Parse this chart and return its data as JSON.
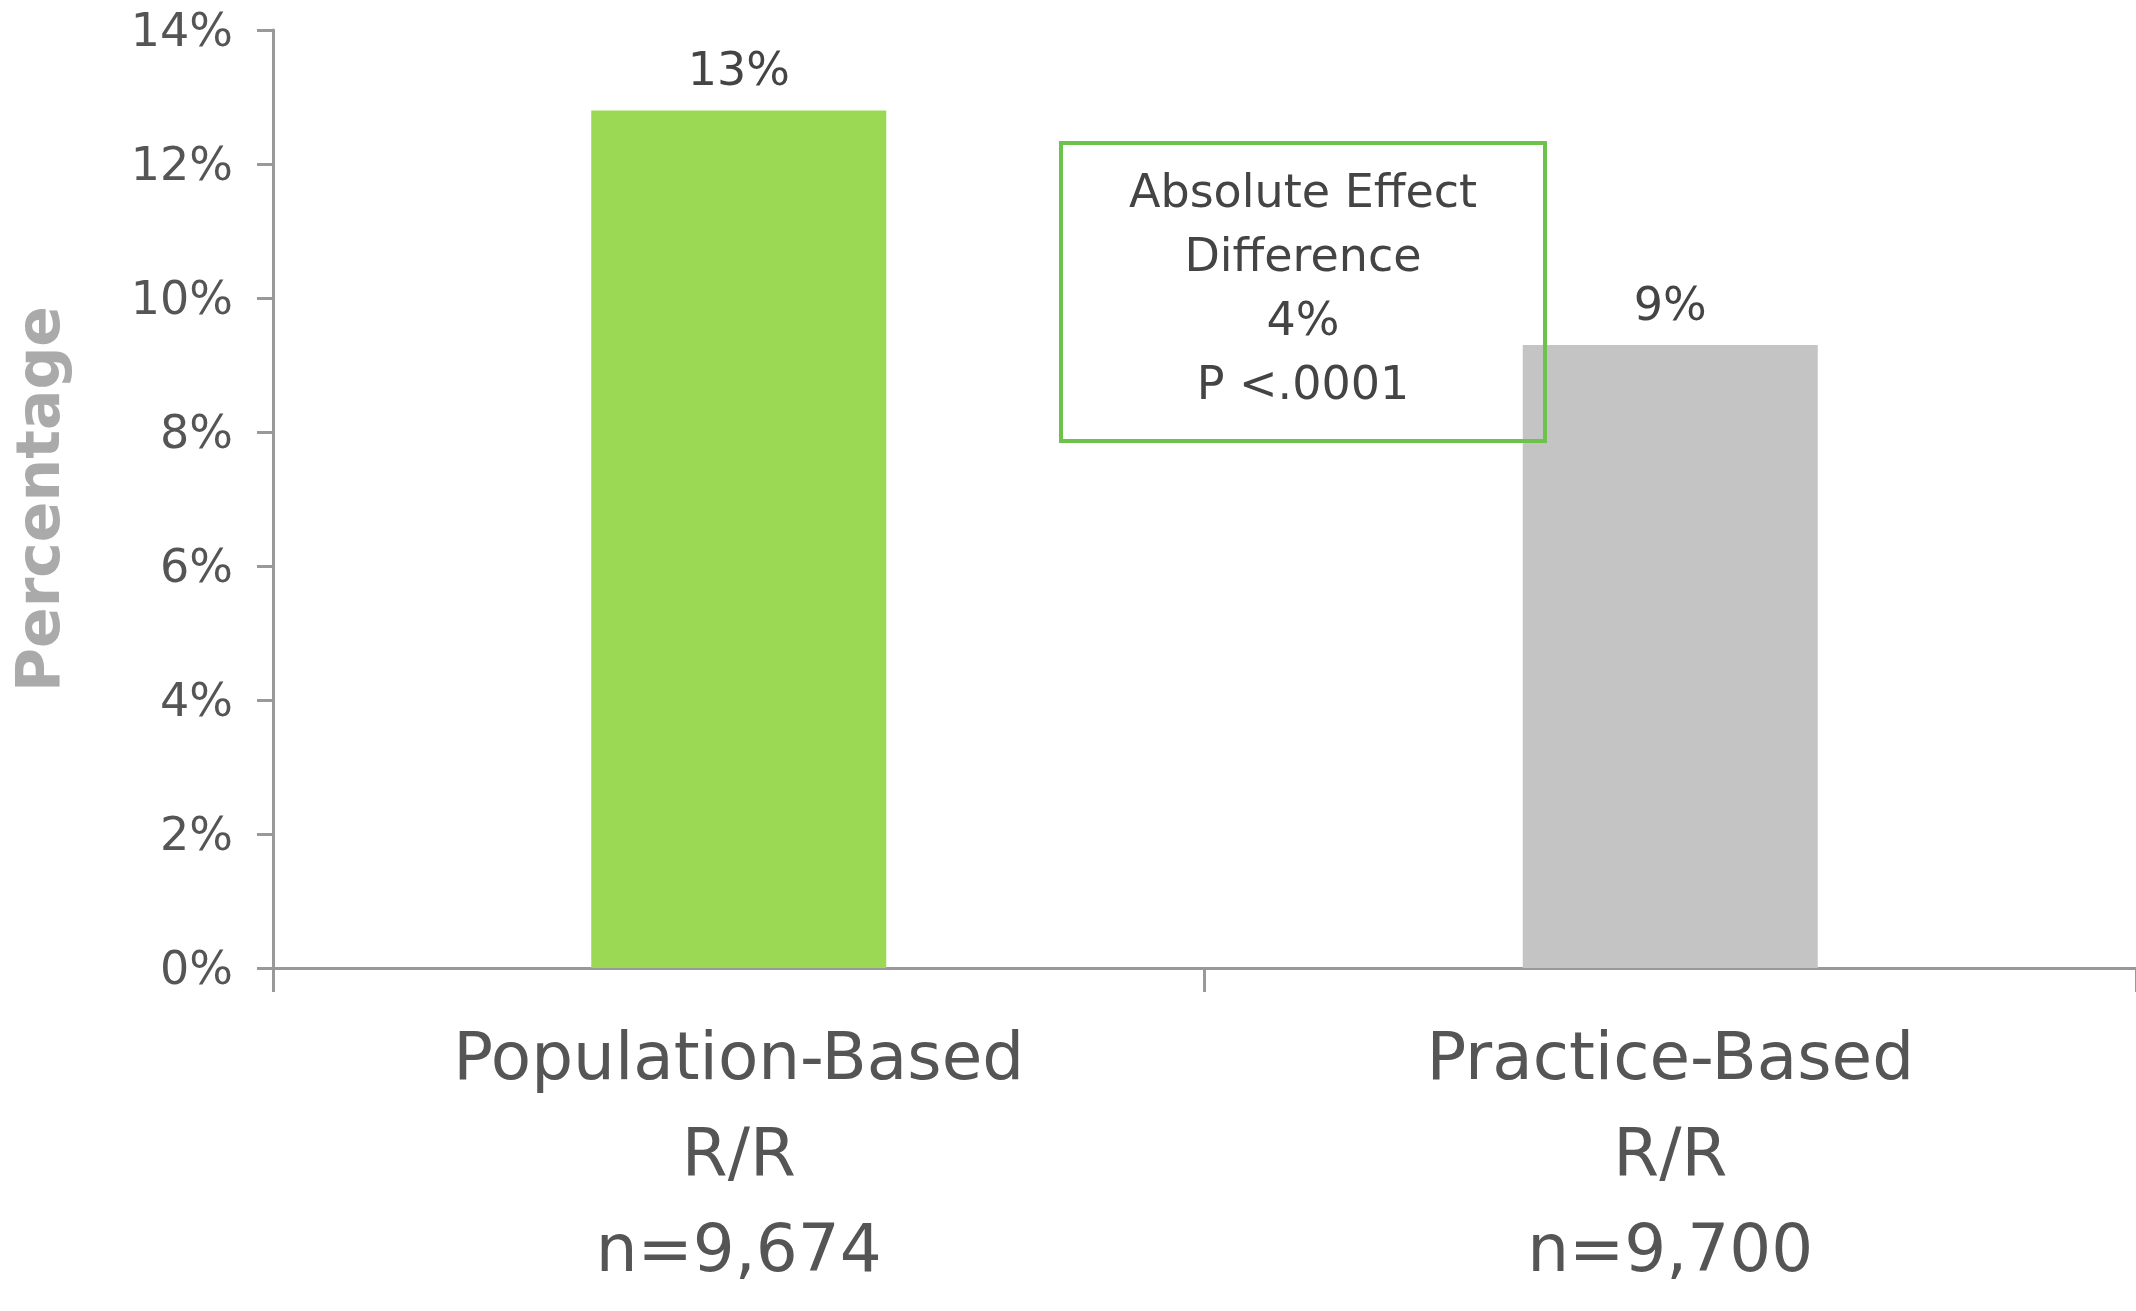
{
  "chart_data": {
    "type": "bar",
    "ylabel": "Percentage",
    "categories": [
      "Population-Based\nR/R\nn=9,674",
      "Practice-Based\nR/R\nn=9,700"
    ],
    "values": [
      12.8,
      9.3
    ],
    "colors": [
      "#9bd854",
      "#c4c4c4"
    ],
    "value_labels": [
      "13%",
      "9%"
    ],
    "ylim": [
      0,
      14
    ],
    "yticks": [
      {
        "value": 0,
        "label": "0%"
      },
      {
        "value": 2,
        "label": "2%"
      },
      {
        "value": 4,
        "label": "4%"
      },
      {
        "value": 6,
        "label": "6%"
      },
      {
        "value": 8,
        "label": "8%"
      },
      {
        "value": 10,
        "label": "10%"
      },
      {
        "value": 12,
        "label": "12%"
      },
      {
        "value": 14,
        "label": "14%"
      }
    ],
    "annotations": [
      "Absolute Effect\nDifference\n4%\nP <.0001"
    ],
    "grid": false
  }
}
